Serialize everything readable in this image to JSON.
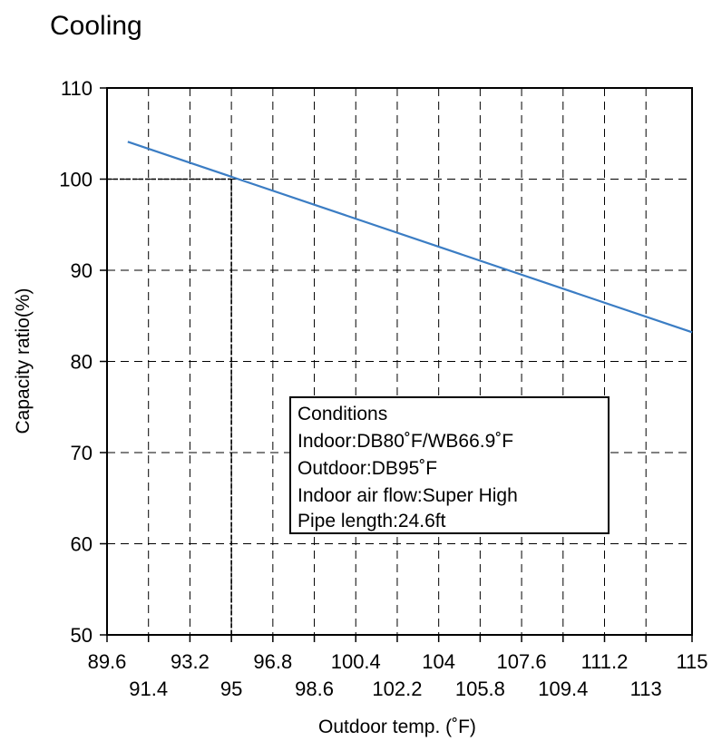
{
  "chart_data": {
    "type": "line",
    "title": "Cooling",
    "xlabel": "Outdoor temp. (˚F)",
    "ylabel": "Capacity ratio(%)",
    "xlim": [
      89.6,
      115
    ],
    "ylim": [
      50,
      110
    ],
    "x_ticks_upper": [
      "89.6",
      "93.2",
      "96.8",
      "100.4",
      "104",
      "107.6",
      "111.2",
      "115"
    ],
    "x_ticks_lower": [
      "91.4",
      "95",
      "98.6",
      "102.2",
      "105.8",
      "109.4",
      "113"
    ],
    "x_tick_values": [
      89.6,
      91.4,
      93.2,
      95,
      96.8,
      98.6,
      100.4,
      102.2,
      104,
      105.8,
      107.6,
      109.4,
      111.2,
      113,
      115
    ],
    "y_ticks": [
      "50",
      "60",
      "70",
      "80",
      "90",
      "100",
      "110"
    ],
    "y_tick_values": [
      50,
      60,
      70,
      80,
      90,
      100,
      110
    ],
    "grid": true,
    "series": [
      {
        "x": [
          90.5,
          115
        ],
        "y": [
          104.1,
          83.2
        ],
        "color": "#3b7dc4"
      }
    ],
    "reference": {
      "x": 95,
      "y": 100
    },
    "conditions": {
      "heading": "Conditions",
      "indoor": "Indoor:DB80˚F/WB66.9˚F",
      "outdoor": "Outdoor:DB95˚F",
      "air_flow": "Indoor air flow:Super High",
      "pipe_length": "Pipe length:24.6ft"
    }
  }
}
